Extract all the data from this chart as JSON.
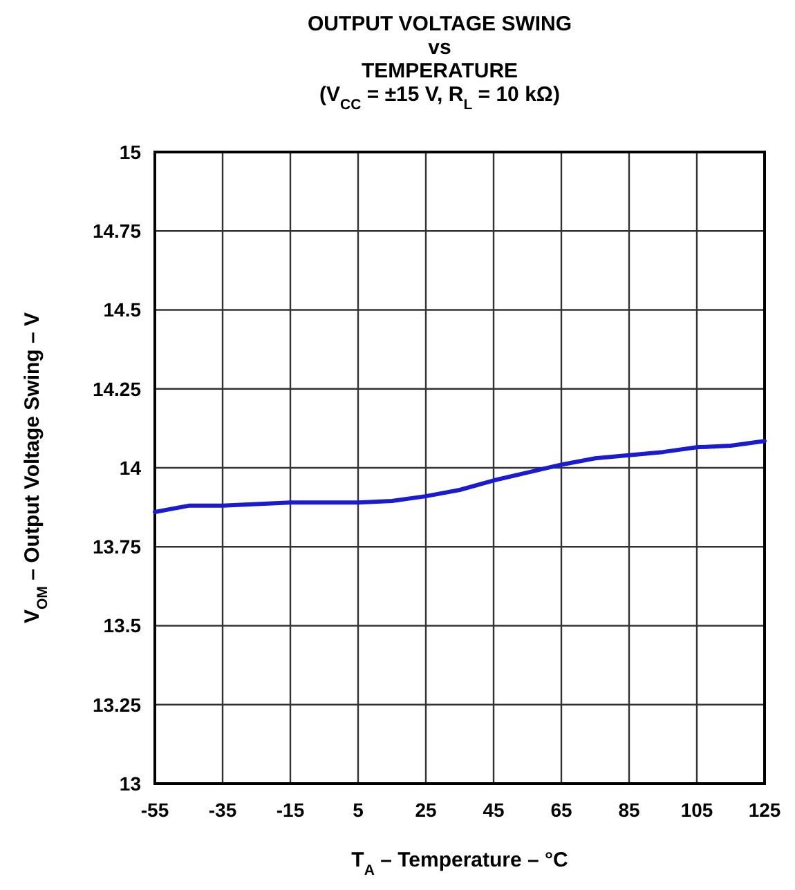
{
  "chart_data": {
    "type": "line",
    "title": "OUTPUT VOLTAGE SWING\nvs\nTEMPERATURE",
    "subtitle": "(V$_{CC}$ = ±15 V, R$_{L}$ = 10 kΩ)",
    "xlabel": "T$_{A}$ – Temperature – °C",
    "ylabel": "V$_{OM}$ – Output Voltage Swing – V",
    "x": [
      -55,
      -45,
      -35,
      -25,
      -15,
      -5,
      5,
      15,
      25,
      35,
      45,
      55,
      65,
      75,
      85,
      95,
      105,
      115,
      125
    ],
    "series": [
      {
        "color": "#1a1ad0",
        "values": [
          13.86,
          13.88,
          13.88,
          13.885,
          13.89,
          13.89,
          13.89,
          13.895,
          13.91,
          13.93,
          13.96,
          13.985,
          14.01,
          14.03,
          14.04,
          14.05,
          14.065,
          14.07,
          14.085
        ]
      }
    ],
    "xlim": [
      -55,
      125
    ],
    "xticks": [
      -55,
      -35,
      -15,
      5,
      25,
      45,
      65,
      85,
      105,
      125
    ],
    "ylim": [
      13,
      15
    ],
    "yticks": [
      13,
      13.25,
      13.5,
      13.75,
      14,
      14.25,
      14.5,
      14.75,
      15
    ],
    "grid": true,
    "legend": false,
    "marker": "none",
    "line_style": "solid"
  }
}
